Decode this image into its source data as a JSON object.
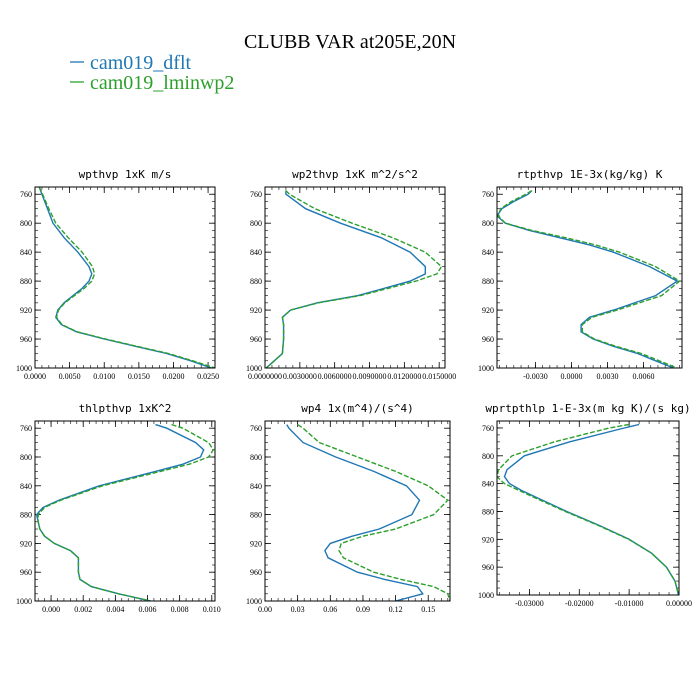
{
  "figure": {
    "title": "CLUBB VAR at205E,20N",
    "legend": [
      {
        "label": "cam019_dflt",
        "color": "#1f77b4",
        "dash": "solid"
      },
      {
        "label": "cam019_lminwp2",
        "color": "#2ca02c",
        "dash": "dashed"
      }
    ]
  },
  "chart_data": [
    {
      "type": "line",
      "title": "wpthvp  1xK m/s",
      "xlim": [
        0,
        0.026
      ],
      "ylim": [
        1000,
        750
      ],
      "xticks": [
        0,
        0.005,
        0.01,
        0.015,
        0.02,
        0.025
      ],
      "xtick_labels": [
        "0.0000",
        "0.0050",
        "0.0100",
        "0.0150",
        "0.0200",
        "0.0250"
      ],
      "yticks": [
        760,
        800,
        840,
        880,
        920,
        960,
        1000
      ],
      "y": [
        750,
        760,
        780,
        800,
        820,
        840,
        860,
        870,
        880,
        890,
        900,
        910,
        920,
        930,
        940,
        950,
        960,
        970,
        980,
        990,
        1000
      ],
      "series": [
        {
          "name": "cam019_dflt",
          "color": "#1f77b4",
          "values": [
            0.0006,
            0.001,
            0.0018,
            0.0026,
            0.0042,
            0.0062,
            0.0078,
            0.0082,
            0.0078,
            0.0068,
            0.0055,
            0.0042,
            0.0033,
            0.003,
            0.0038,
            0.006,
            0.01,
            0.0145,
            0.019,
            0.0225,
            0.0255
          ]
        },
        {
          "name": "cam019_lminwp2",
          "color": "#2ca02c",
          "values": [
            0.0006,
            0.0011,
            0.002,
            0.003,
            0.0048,
            0.0068,
            0.0083,
            0.0086,
            0.0082,
            0.0071,
            0.0057,
            0.0043,
            0.0034,
            0.0031,
            0.0039,
            0.0061,
            0.0102,
            0.0147,
            0.0193,
            0.0228,
            0.026
          ]
        }
      ]
    },
    {
      "type": "line",
      "title": "wp2thvp  1xK m^2/s^2",
      "xlim": [
        0,
        0.0155
      ],
      "ylim": [
        1000,
        750
      ],
      "xticks": [
        0,
        0.003,
        0.006,
        0.009,
        0.012,
        0.015
      ],
      "xtick_labels": [
        "0.0000000",
        "0.0030000",
        "0.0060000",
        "0.0090000",
        "0.0120000",
        "0.0150000"
      ],
      "yticks": [
        760,
        800,
        840,
        880,
        920,
        960,
        1000
      ],
      "y": [
        755,
        760,
        780,
        800,
        820,
        840,
        860,
        870,
        880,
        900,
        910,
        920,
        930,
        940,
        960,
        980,
        990,
        1000
      ],
      "series": [
        {
          "name": "cam019_dflt",
          "color": "#1f77b4",
          "values": [
            0.0018,
            0.0018,
            0.0035,
            0.0065,
            0.01,
            0.0125,
            0.0138,
            0.0138,
            0.0125,
            0.008,
            0.0045,
            0.0022,
            0.0015,
            0.0016,
            0.0016,
            0.0015,
            0.0008,
            0.0001
          ]
        },
        {
          "name": "cam019_lminwp2",
          "color": "#2ca02c",
          "values": [
            0.0018,
            0.0021,
            0.0043,
            0.0075,
            0.011,
            0.0138,
            0.0152,
            0.0148,
            0.013,
            0.0082,
            0.0046,
            0.0022,
            0.0015,
            0.0016,
            0.0016,
            0.0015,
            0.0008,
            0.0001
          ]
        }
      ]
    },
    {
      "type": "line",
      "title": "rtpthvp  1E-3x(kg/kg) K",
      "xlim": [
        -0.0062,
        0.0092
      ],
      "ylim": [
        1000,
        750
      ],
      "xticks": [
        -0.003,
        0,
        0.003,
        0.006
      ],
      "xtick_labels": [
        "-0.0030",
        "0.0000",
        "0.0030",
        "0.0060"
      ],
      "yticks": [
        760,
        800,
        840,
        880,
        920,
        960,
        1000
      ],
      "y": [
        755,
        760,
        770,
        780,
        790,
        800,
        810,
        820,
        830,
        840,
        860,
        880,
        900,
        920,
        930,
        940,
        950,
        960,
        970,
        980,
        990,
        1000
      ],
      "series": [
        {
          "name": "cam019_dflt",
          "color": "#1f77b4",
          "values": [
            -0.0033,
            -0.0036,
            -0.0048,
            -0.0058,
            -0.0062,
            -0.0055,
            -0.0035,
            -0.001,
            0.0015,
            0.0035,
            0.0065,
            0.0088,
            0.007,
            0.0035,
            0.0015,
            0.0008,
            0.0008,
            0.0018,
            0.0035,
            0.0055,
            0.007,
            0.0085
          ]
        },
        {
          "name": "cam019_lminwp2",
          "color": "#2ca02c",
          "values": [
            -0.0033,
            -0.0038,
            -0.005,
            -0.0059,
            -0.0061,
            -0.0055,
            -0.0033,
            -0.0005,
            0.002,
            0.004,
            0.007,
            0.009,
            0.0075,
            0.0038,
            0.0017,
            0.0009,
            0.0009,
            0.0019,
            0.0037,
            0.0058,
            0.0073,
            0.0088
          ]
        }
      ]
    },
    {
      "type": "line",
      "title": "thlpthvp  1xK^2",
      "xlim": [
        -0.001,
        0.0102
      ],
      "ylim": [
        1000,
        750
      ],
      "xticks": [
        0,
        0.002,
        0.004,
        0.006,
        0.008,
        0.01
      ],
      "xtick_labels": [
        "0.000",
        "0.002",
        "0.004",
        "0.006",
        "0.008",
        "0.010"
      ],
      "yticks": [
        760,
        800,
        840,
        880,
        920,
        960,
        1000
      ],
      "y": [
        755,
        760,
        780,
        790,
        800,
        810,
        820,
        840,
        860,
        870,
        880,
        890,
        900,
        910,
        920,
        930,
        940,
        950,
        960,
        970,
        980,
        990,
        1000
      ],
      "series": [
        {
          "name": "cam019_dflt",
          "color": "#1f77b4",
          "values": [
            0.0065,
            0.0072,
            0.009,
            0.0095,
            0.0093,
            0.0082,
            0.0065,
            0.003,
            0.0005,
            -0.0005,
            -0.0009,
            -0.0008,
            -0.0007,
            -0.0004,
            0.0002,
            0.0012,
            0.0017,
            0.0017,
            0.0017,
            0.0018,
            0.0025,
            0.0042,
            0.0062
          ]
        },
        {
          "name": "cam019_lminwp2",
          "color": "#2ca02c",
          "values": [
            0.0075,
            0.0082,
            0.0098,
            0.0101,
            0.0098,
            0.0086,
            0.0068,
            0.0032,
            0.0006,
            -0.0004,
            -0.0008,
            -0.0008,
            -0.0007,
            -0.0004,
            0.0002,
            0.0012,
            0.0017,
            0.0017,
            0.0017,
            0.0018,
            0.0025,
            0.0042,
            0.0062
          ]
        }
      ]
    },
    {
      "type": "line",
      "title": "wp4  1x(m^4)/(s^4)",
      "xlim": [
        0,
        0.17
      ],
      "ylim": [
        1000,
        750
      ],
      "xticks": [
        0,
        0.03,
        0.06,
        0.09,
        0.12,
        0.15
      ],
      "xtick_labels": [
        "0.00",
        "0.03",
        "0.06",
        "0.09",
        "0.12",
        "0.15"
      ],
      "yticks": [
        760,
        800,
        840,
        880,
        920,
        960,
        1000
      ],
      "y": [
        755,
        760,
        780,
        800,
        820,
        840,
        860,
        880,
        900,
        910,
        920,
        930,
        940,
        960,
        970,
        980,
        990,
        1000
      ],
      "series": [
        {
          "name": "cam019_dflt",
          "color": "#1f77b4",
          "values": [
            0.02,
            0.022,
            0.035,
            0.065,
            0.1,
            0.13,
            0.142,
            0.135,
            0.105,
            0.08,
            0.06,
            0.055,
            0.058,
            0.085,
            0.11,
            0.14,
            0.145,
            0.12
          ]
        },
        {
          "name": "cam019_lminwp2",
          "color": "#2ca02c",
          "values": [
            0.03,
            0.035,
            0.05,
            0.085,
            0.12,
            0.15,
            0.168,
            0.155,
            0.12,
            0.09,
            0.07,
            0.068,
            0.072,
            0.1,
            0.125,
            0.155,
            0.168,
            0.17
          ]
        }
      ]
    },
    {
      "type": "line",
      "title": "wprtpthlp  1-E-3x(m kg K)/(s kg)",
      "xlim": [
        -0.0365,
        0
      ],
      "ylim": [
        1000,
        750
      ],
      "xticks": [
        -0.03,
        -0.02,
        -0.01,
        0
      ],
      "xtick_labels": [
        "-0.03000",
        "-0.02000",
        "-0.01000",
        "0.00000"
      ],
      "yticks": [
        760,
        800,
        840,
        880,
        920,
        960,
        1000
      ],
      "y": [
        755,
        760,
        780,
        800,
        820,
        830,
        840,
        850,
        860,
        880,
        900,
        920,
        940,
        960,
        980,
        1000
      ],
      "series": [
        {
          "name": "cam019_dflt",
          "color": "#1f77b4",
          "values": [
            -0.008,
            -0.011,
            -0.022,
            -0.031,
            -0.0345,
            -0.035,
            -0.034,
            -0.0315,
            -0.0285,
            -0.0225,
            -0.016,
            -0.01,
            -0.0055,
            -0.0025,
            -0.0008,
            -0.0001
          ]
        },
        {
          "name": "cam019_lminwp2",
          "color": "#2ca02c",
          "values": [
            -0.01,
            -0.014,
            -0.025,
            -0.0335,
            -0.0362,
            -0.0365,
            -0.035,
            -0.032,
            -0.029,
            -0.0228,
            -0.0162,
            -0.0101,
            -0.0055,
            -0.0025,
            -0.0008,
            -0.0001
          ]
        }
      ]
    }
  ]
}
